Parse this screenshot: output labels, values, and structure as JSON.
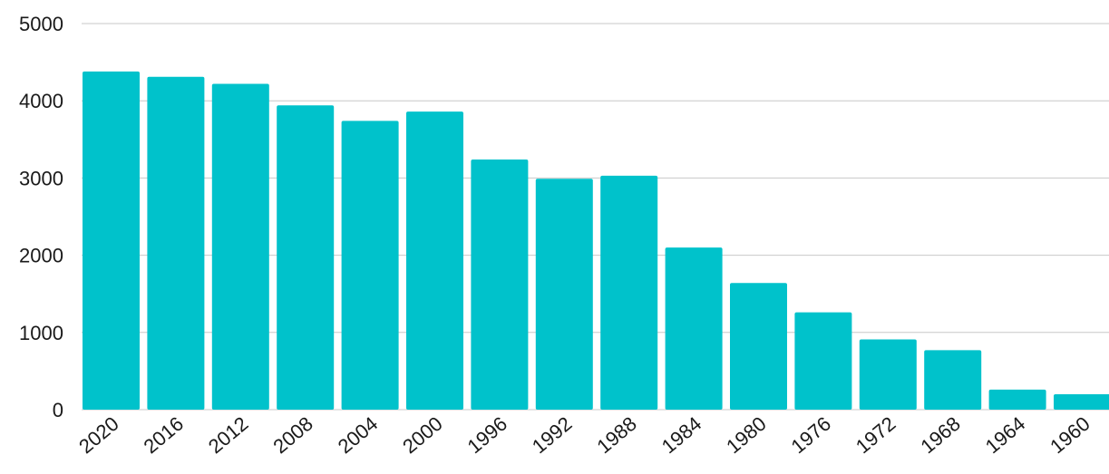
{
  "chart_data": {
    "type": "bar",
    "title": "",
    "xlabel": "",
    "ylabel": "",
    "categories": [
      "2020",
      "2016",
      "2012",
      "2008",
      "2004",
      "2000",
      "1996",
      "1992",
      "1988",
      "1984",
      "1980",
      "1976",
      "1972",
      "1968",
      "1964",
      "1960"
    ],
    "values": [
      4380,
      4310,
      4220,
      3940,
      3740,
      3860,
      3240,
      2990,
      3030,
      2100,
      1640,
      1260,
      910,
      770,
      260,
      200
    ],
    "ylim": [
      0,
      5000
    ],
    "yticks": [
      "0",
      "1000",
      "2000",
      "3000",
      "4000",
      "5000"
    ],
    "bar_color": "#00c2cb",
    "grid": true,
    "legend": "none"
  }
}
